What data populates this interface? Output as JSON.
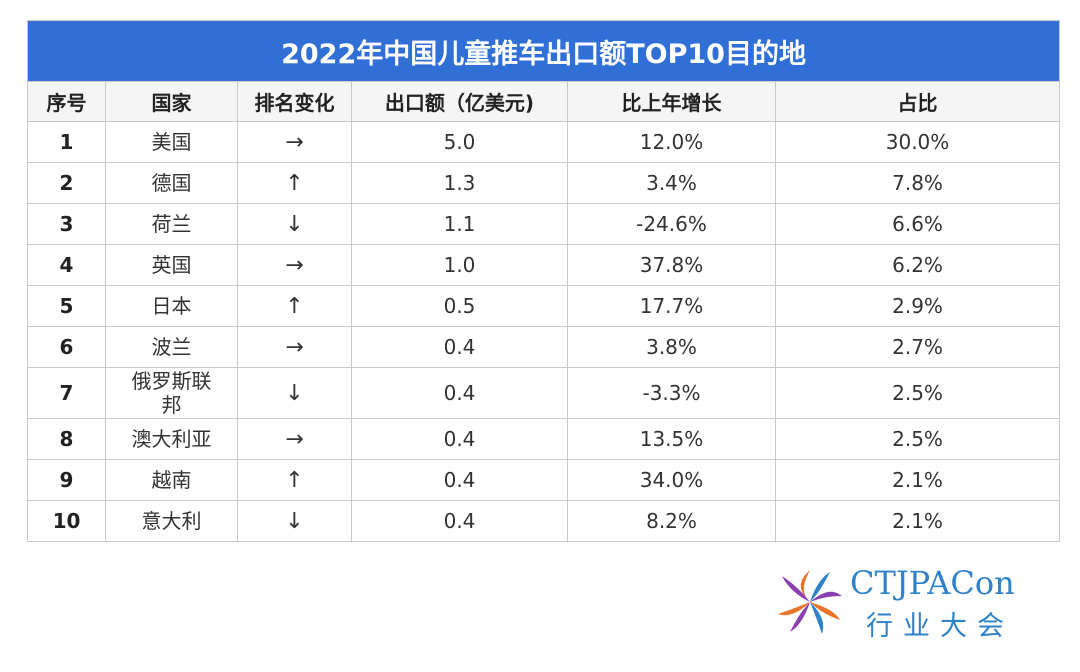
{
  "table": {
    "title": "2022年中国儿童推车出口额TOP10目的地",
    "headers": [
      "序号",
      "国家",
      "排名变化",
      "出口额（亿美元)",
      "比上年增长",
      "占比"
    ],
    "rows": [
      {
        "rank": "1",
        "country": "美国",
        "change": "→",
        "export": "5.0",
        "growth": "12.0%",
        "share": "30.0%"
      },
      {
        "rank": "2",
        "country": "德国",
        "change": "↑",
        "export": "1.3",
        "growth": "3.4%",
        "share": "7.8%"
      },
      {
        "rank": "3",
        "country": "荷兰",
        "change": "↓",
        "export": "1.1",
        "growth": "-24.6%",
        "share": "6.6%"
      },
      {
        "rank": "4",
        "country": "英国",
        "change": "→",
        "export": "1.0",
        "growth": "37.8%",
        "share": "6.2%"
      },
      {
        "rank": "5",
        "country": "日本",
        "change": "↑",
        "export": "0.5",
        "growth": "17.7%",
        "share": "2.9%"
      },
      {
        "rank": "6",
        "country": "波兰",
        "change": "→",
        "export": "0.4",
        "growth": "3.8%",
        "share": "2.7%"
      },
      {
        "rank": "7",
        "country": "俄罗斯联\n邦",
        "change": "↓",
        "export": "0.4",
        "growth": "-3.3%",
        "share": "2.5%"
      },
      {
        "rank": "8",
        "country": "澳大利亚",
        "change": "→",
        "export": "0.4",
        "growth": "13.5%",
        "share": "2.5%"
      },
      {
        "rank": "9",
        "country": "越南",
        "change": "↑",
        "export": "0.4",
        "growth": "34.0%",
        "share": "2.1%"
      },
      {
        "rank": "10",
        "country": "意大利",
        "change": "↓",
        "export": "0.4",
        "growth": "8.2%",
        "share": "2.1%"
      }
    ]
  },
  "logo": {
    "name_en": "CTJPACon",
    "name_cn": "行业大会",
    "color": "#2f82c8",
    "accent_colors": [
      "#e8742a",
      "#8a3fb0",
      "#2f82c8"
    ]
  },
  "colors": {
    "title_bg": "#2f6fd6",
    "border": "#c9c9c9"
  }
}
